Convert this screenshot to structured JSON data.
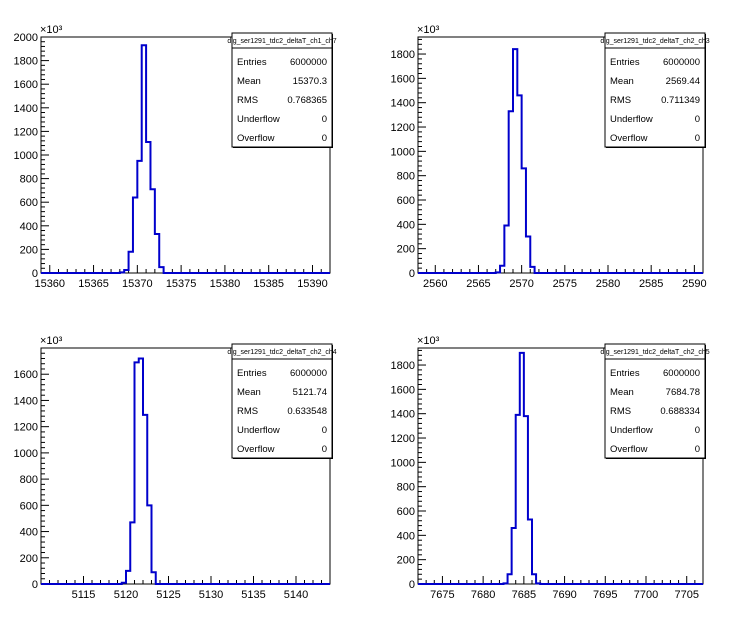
{
  "chart_data": [
    {
      "type": "bar",
      "title": "",
      "xlabel": "",
      "ylabel": "",
      "y_multiplier_label": "×10³",
      "xlim": [
        15359,
        15392
      ],
      "ylim": [
        0,
        2000
      ],
      "xticks": [
        15360,
        15365,
        15370,
        15375,
        15380,
        15385,
        15390
      ],
      "yticks": [
        0,
        200,
        400,
        600,
        800,
        1000,
        1200,
        1400,
        1600,
        1800,
        2000
      ],
      "line_color": "#0000cc",
      "bin_width": 0.5,
      "x": [
        15368.0,
        15368.5,
        15369.0,
        15369.5,
        15370.0,
        15370.5,
        15371.0,
        15371.5,
        15372.0,
        15372.5
      ],
      "values": [
        5,
        25,
        180,
        640,
        950,
        1930,
        1110,
        710,
        330,
        50
      ],
      "stats": {
        "name": "dig_ser1291_tdc2_deltaT_ch1_ch7",
        "rows": [
          {
            "label": "Entries",
            "value": "6000000"
          },
          {
            "label": "Mean",
            "value": "15370.3"
          },
          {
            "label": "RMS",
            "value": "0.768365"
          },
          {
            "label": "Underflow",
            "value": "0"
          },
          {
            "label": "Overflow",
            "value": "0"
          }
        ]
      }
    },
    {
      "type": "bar",
      "title": "",
      "xlabel": "",
      "ylabel": "",
      "y_multiplier_label": "×10³",
      "xlim": [
        2558,
        2591
      ],
      "ylim": [
        0,
        1940
      ],
      "xticks": [
        2560,
        2565,
        2570,
        2575,
        2580,
        2585,
        2590
      ],
      "yticks": [
        0,
        200,
        400,
        600,
        800,
        1000,
        1200,
        1400,
        1600,
        1800
      ],
      "line_color": "#0000cc",
      "bin_width": 0.5,
      "x": [
        2567.0,
        2567.5,
        2568.0,
        2568.5,
        2569.0,
        2569.5,
        2570.0,
        2570.5,
        2571.0
      ],
      "values": [
        5,
        60,
        390,
        1330,
        1840,
        1460,
        860,
        300,
        50
      ],
      "stats": {
        "name": "dig_ser1291_tdc2_deltaT_ch2_ch3",
        "rows": [
          {
            "label": "Entries",
            "value": "6000000"
          },
          {
            "label": "Mean",
            "value": "2569.44"
          },
          {
            "label": "RMS",
            "value": "0.711349"
          },
          {
            "label": "Underflow",
            "value": "0"
          },
          {
            "label": "Overflow",
            "value": "0"
          }
        ]
      }
    },
    {
      "type": "bar",
      "title": "",
      "xlabel": "",
      "ylabel": "",
      "y_multiplier_label": "×10³",
      "xlim": [
        5110,
        5144
      ],
      "ylim": [
        0,
        1800
      ],
      "xticks": [
        5115,
        5120,
        5125,
        5130,
        5135,
        5140
      ],
      "yticks": [
        0,
        200,
        400,
        600,
        800,
        1000,
        1200,
        1400,
        1600
      ],
      "line_color": "#0000cc",
      "bin_width": 0.5,
      "x": [
        5119.5,
        5120.0,
        5120.5,
        5121.0,
        5121.5,
        5122.0,
        5122.5,
        5123.0
      ],
      "values": [
        10,
        100,
        470,
        1690,
        1720,
        1290,
        600,
        90
      ],
      "stats": {
        "name": "dig_ser1291_tdc2_deltaT_ch2_ch4",
        "rows": [
          {
            "label": "Entries",
            "value": "6000000"
          },
          {
            "label": "Mean",
            "value": "5121.74"
          },
          {
            "label": "RMS",
            "value": "0.633548"
          },
          {
            "label": "Underflow",
            "value": "0"
          },
          {
            "label": "Overflow",
            "value": "0"
          }
        ]
      }
    },
    {
      "type": "bar",
      "title": "",
      "xlabel": "",
      "ylabel": "",
      "y_multiplier_label": "×10³",
      "xlim": [
        7672,
        7707
      ],
      "ylim": [
        0,
        1940
      ],
      "xticks": [
        7675,
        7680,
        7685,
        7690,
        7695,
        7700,
        7705
      ],
      "yticks": [
        0,
        200,
        400,
        600,
        800,
        1000,
        1200,
        1400,
        1600,
        1800
      ],
      "line_color": "#0000cc",
      "bin_width": 0.5,
      "x": [
        7682.5,
        7683.0,
        7683.5,
        7684.0,
        7684.5,
        7685.0,
        7685.5,
        7686.0,
        7686.5
      ],
      "values": [
        5,
        80,
        460,
        1390,
        1900,
        1380,
        530,
        80,
        5
      ],
      "stats": {
        "name": "dig_ser1291_tdc2_deltaT_ch2_ch5",
        "rows": [
          {
            "label": "Entries",
            "value": "6000000"
          },
          {
            "label": "Mean",
            "value": "7684.78"
          },
          {
            "label": "RMS",
            "value": "0.688334"
          },
          {
            "label": "Underflow",
            "value": "0"
          },
          {
            "label": "Overflow",
            "value": "0"
          }
        ]
      }
    }
  ]
}
